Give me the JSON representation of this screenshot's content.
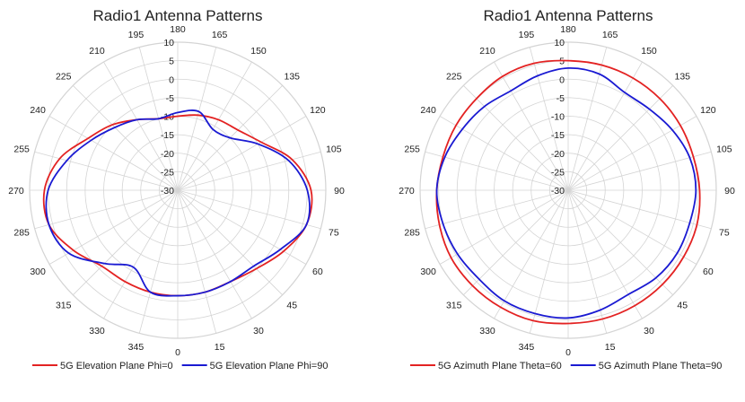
{
  "colors": {
    "series1": "#e32222",
    "series2": "#1a1ad2",
    "grid": "#d4d4d4",
    "text": "#222222"
  },
  "chart_data": [
    {
      "type": "polar-line",
      "title": "Radio1 Antenna Patterns",
      "r_range": [
        -30,
        10
      ],
      "r_ticks": [
        "10",
        "5",
        "0",
        "-5",
        "-10",
        "-15",
        "-20",
        "-25",
        "-30"
      ],
      "angle_labels": [
        "0",
        "15",
        "30",
        "45",
        "60",
        "75",
        "90",
        "105",
        "120",
        "135",
        "150",
        "165",
        "180",
        "195",
        "210",
        "225",
        "240",
        "255",
        "270",
        "285",
        "300",
        "315",
        "330",
        "345"
      ],
      "angle_direction": "counterclockwise, 0 at bottom",
      "grid": true,
      "legend_position": "bottom",
      "series": [
        {
          "name": "5G Elevation Plane Phi=0",
          "color": "#e32222",
          "angles": [
            0,
            15,
            30,
            45,
            60,
            75,
            90,
            105,
            120,
            135,
            150,
            165,
            180,
            195,
            210,
            225,
            240,
            255,
            270,
            285,
            300,
            315,
            330,
            345
          ],
          "values": [
            -1.5,
            -1.5,
            -1.5,
            0,
            3,
            6,
            6,
            2,
            -4,
            -7,
            -8,
            -9,
            -10,
            -10,
            -8,
            -5,
            -2,
            3,
            6,
            6,
            2.5,
            -1,
            -1.5,
            -1.5
          ]
        },
        {
          "name": "5G Elevation Plane Phi=90",
          "color": "#1a1ad2",
          "angles": [
            0,
            15,
            30,
            45,
            60,
            75,
            90,
            105,
            120,
            135,
            150,
            165,
            180,
            195,
            210,
            225,
            240,
            255,
            270,
            285,
            300,
            315,
            330,
            345
          ],
          "values": [
            -1.5,
            -1.5,
            -1.5,
            -1,
            2,
            6,
            5,
            1,
            -5,
            -10,
            -11,
            -8,
            -9,
            -10,
            -8,
            -6,
            -3,
            1,
            5,
            6,
            4,
            -2,
            -6,
            -1.5
          ]
        }
      ]
    },
    {
      "type": "polar-line",
      "title": "Radio1 Antenna Patterns",
      "r_range": [
        -30,
        10
      ],
      "r_ticks": [
        "10",
        "5",
        "0",
        "-5",
        "-10",
        "-15",
        "-20",
        "-25",
        "-30"
      ],
      "angle_labels": [
        "0",
        "15",
        "30",
        "45",
        "60",
        "75",
        "90",
        "105",
        "120",
        "135",
        "150",
        "165",
        "180",
        "195",
        "210",
        "225",
        "240",
        "255",
        "270",
        "285",
        "300",
        "315",
        "330",
        "345"
      ],
      "angle_direction": "counterclockwise, 0 at bottom",
      "grid": true,
      "legend_position": "bottom",
      "series": [
        {
          "name": "5G Azimuth Plane Theta=60",
          "color": "#e32222",
          "angles": [
            0,
            15,
            30,
            45,
            60,
            75,
            90,
            105,
            120,
            135,
            150,
            165,
            180,
            195,
            210,
            225,
            240,
            255,
            270,
            285,
            300,
            315,
            330,
            345
          ],
          "values": [
            6,
            6,
            6,
            6,
            6,
            6,
            5.5,
            5,
            5,
            5,
            5,
            5,
            5,
            5.5,
            5.5,
            5,
            5,
            5,
            5.5,
            6,
            6.5,
            6.5,
            6.5,
            6.5
          ]
        },
        {
          "name": "5G Azimuth Plane Theta=90",
          "color": "#1a1ad2",
          "angles": [
            0,
            15,
            30,
            45,
            60,
            75,
            90,
            105,
            120,
            135,
            150,
            165,
            180,
            195,
            210,
            225,
            240,
            255,
            270,
            285,
            300,
            315,
            330,
            345
          ],
          "values": [
            4.5,
            3.5,
            2.5,
            3.5,
            4,
            4,
            4.5,
            4,
            2.5,
            1,
            0.5,
            2.5,
            3,
            2,
            1,
            2,
            3,
            4.5,
            5.5,
            5,
            4.5,
            4,
            4.5,
            4.5
          ]
        }
      ]
    }
  ]
}
